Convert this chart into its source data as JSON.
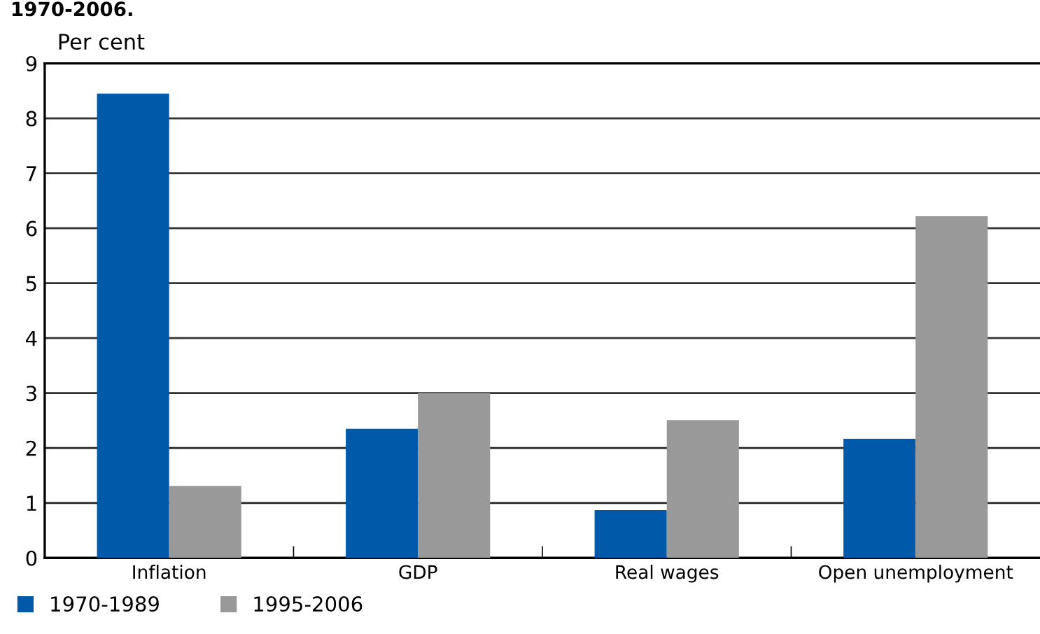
{
  "chart_data": {
    "type": "bar",
    "title": "1970-2006.",
    "ylabel": "Per cent",
    "categories": [
      "Inflation",
      "GDP",
      "Real wages",
      "Open unemployment"
    ],
    "series": [
      {
        "name": "1970-1989",
        "color": "#005aa9",
        "values": [
          8.45,
          2.35,
          0.87,
          2.17
        ]
      },
      {
        "name": "1995-2006",
        "color": "#999999",
        "values": [
          1.31,
          3.0,
          2.51,
          6.22
        ]
      }
    ],
    "ylim": [
      0,
      9
    ],
    "yticks": [
      0,
      1,
      2,
      3,
      4,
      5,
      6,
      7,
      8,
      9
    ],
    "grid": "y",
    "legend": "bottom left"
  }
}
